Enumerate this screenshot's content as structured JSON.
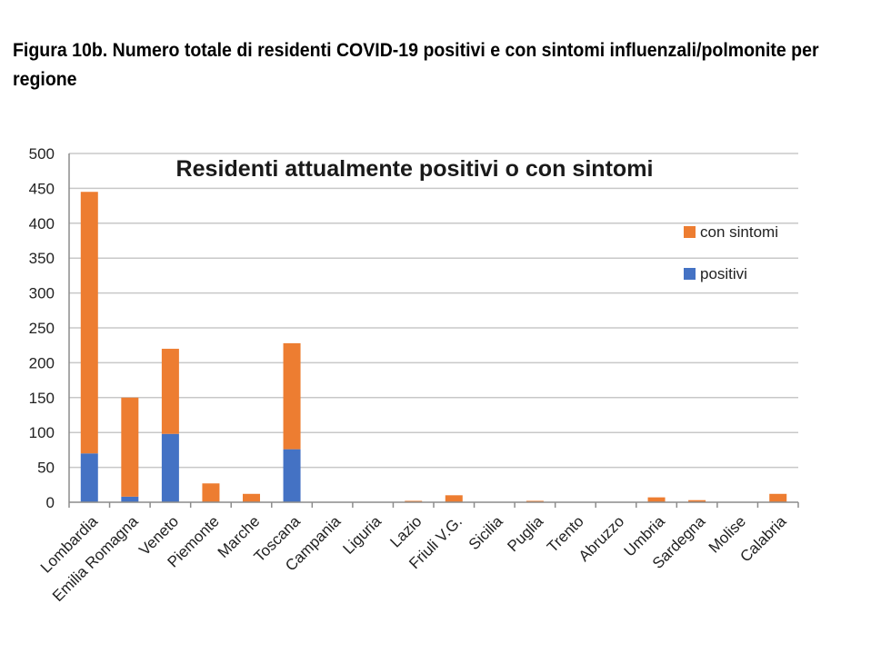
{
  "figure_title": "Figura 10b. Numero totale di residenti COVID-19 positivi e con sintomi influenzali/polmonite per regione",
  "chart_data": {
    "type": "bar",
    "stacked": true,
    "title": "Residenti attualmente positivi o con sintomi",
    "categories": [
      "Lombardia",
      "Emilia Romagna",
      "Veneto",
      "Piemonte",
      "Marche",
      "Toscana",
      "Campania",
      "Liguria",
      "Lazio",
      "Friuli V.G.",
      "Sicilia",
      "Puglia",
      "Trento",
      "Abruzzo",
      "Umbria",
      "Sardegna",
      "Molise",
      "Calabria"
    ],
    "series": [
      {
        "name": "positivi",
        "color": "#4472C4",
        "values": [
          70,
          8,
          98,
          0,
          0,
          76,
          0,
          0,
          0,
          0,
          0,
          0,
          0,
          0,
          0,
          0,
          0,
          0
        ]
      },
      {
        "name": "con sintomi",
        "color": "#ED7D31",
        "values": [
          375,
          142,
          122,
          27,
          12,
          152,
          0,
          0,
          2,
          10,
          0,
          2,
          0,
          0,
          7,
          3,
          0,
          12
        ]
      }
    ],
    "legend_order": [
      "con sintomi",
      "positivi"
    ],
    "legend_position": "right",
    "ylim": [
      0,
      500
    ],
    "yticks": [
      0,
      50,
      100,
      150,
      200,
      250,
      300,
      350,
      400,
      450,
      500
    ],
    "xlabel": "",
    "ylabel": "",
    "grid": true
  }
}
